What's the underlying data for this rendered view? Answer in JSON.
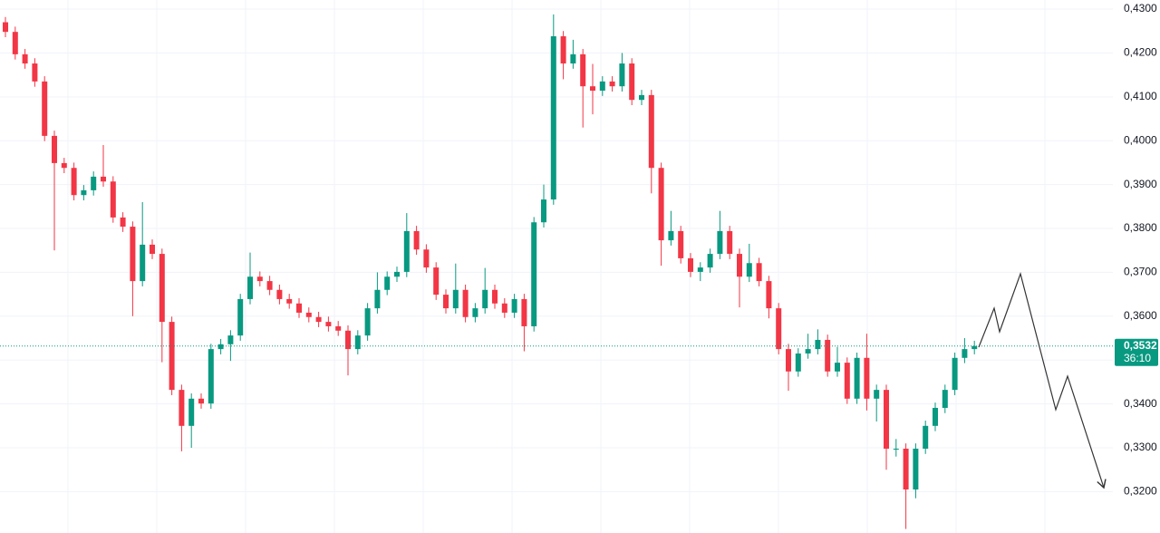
{
  "chart_data": {
    "type": "candlestick",
    "up_color": "#089981",
    "down_color": "#f23645",
    "grid": true,
    "ylim": [
      0.31058,
      0.43207
    ],
    "yticks": [
      {
        "value": 0.43,
        "label": "0,4300"
      },
      {
        "value": 0.42,
        "label": "0,4200"
      },
      {
        "value": 0.41,
        "label": "0,4100"
      },
      {
        "value": 0.4,
        "label": "0,4000"
      },
      {
        "value": 0.39,
        "label": "0,3900"
      },
      {
        "value": 0.38,
        "label": "0,3800"
      },
      {
        "value": 0.37,
        "label": "0,3700"
      },
      {
        "value": 0.36,
        "label": "0,3600"
      },
      {
        "value": 0.35,
        "label": "0,3500"
      },
      {
        "value": 0.34,
        "label": "0,3400"
      },
      {
        "value": 0.33,
        "label": "0,3300"
      },
      {
        "value": 0.32,
        "label": "0,3200"
      }
    ],
    "last_price": {
      "value": 0.3532,
      "label": "0,3532"
    },
    "countdown": "36:10",
    "open": [
      0.427,
      0.4248,
      0.4197,
      0.4176,
      0.4135,
      0.4011,
      0.3949,
      0.3938,
      0.3876,
      0.3887,
      0.3918,
      0.3907,
      0.3825,
      0.3804,
      0.368,
      0.3763,
      0.3742,
      0.3587,
      0.3432,
      0.335,
      0.3412,
      0.3401,
      0.3525,
      0.3536,
      0.3556,
      0.3639,
      0.369,
      0.368,
      0.366,
      0.3639,
      0.3629,
      0.3608,
      0.3598,
      0.3587,
      0.3577,
      0.3567,
      0.3525,
      0.3556,
      0.3618,
      0.366,
      0.369,
      0.3701,
      0.3794,
      0.3752,
      0.3711,
      0.3649,
      0.3618,
      0.366,
      0.3598,
      0.3618,
      0.366,
      0.3629,
      0.3608,
      0.3639,
      0.3577,
      0.3814,
      0.3866,
      0.4238,
      0.4176,
      0.4197,
      0.4124,
      0.4114,
      0.4135,
      0.4124,
      0.4176,
      0.4093,
      0.4104,
      0.3938,
      0.3773,
      0.3794,
      0.3732,
      0.3701,
      0.3711,
      0.3742,
      0.3794,
      0.3742,
      0.369,
      0.3721,
      0.368,
      0.3618,
      0.3525,
      0.3474,
      0.3515,
      0.3525,
      0.3546,
      0.3474,
      0.3494,
      0.3412,
      0.3505,
      0.3412,
      0.3432,
      0.3298,
      0.3298,
      0.3205,
      0.3298,
      0.335,
      0.3391,
      0.3432,
      0.3505,
      0.3525
    ],
    "high": [
      0.4282,
      0.426,
      0.4209,
      0.4188,
      0.4147,
      0.4023,
      0.3961,
      0.395,
      0.3899,
      0.393,
      0.399,
      0.3919,
      0.3837,
      0.3816,
      0.386,
      0.3775,
      0.3754,
      0.3599,
      0.3444,
      0.3424,
      0.3424,
      0.3537,
      0.3548,
      0.3568,
      0.3651,
      0.3745,
      0.3702,
      0.3692,
      0.3672,
      0.3651,
      0.3641,
      0.362,
      0.361,
      0.3599,
      0.3589,
      0.3579,
      0.3568,
      0.363,
      0.37,
      0.3702,
      0.3713,
      0.3835,
      0.3806,
      0.3764,
      0.3723,
      0.3661,
      0.372,
      0.3672,
      0.363,
      0.371,
      0.3672,
      0.3641,
      0.3651,
      0.3651,
      0.3826,
      0.39,
      0.4288,
      0.425,
      0.423,
      0.4209,
      0.4175,
      0.4147,
      0.4147,
      0.42,
      0.4188,
      0.4116,
      0.4116,
      0.395,
      0.384,
      0.3806,
      0.3744,
      0.3723,
      0.3754,
      0.384,
      0.3806,
      0.3754,
      0.3765,
      0.3733,
      0.3692,
      0.363,
      0.3537,
      0.3527,
      0.356,
      0.357,
      0.3558,
      0.353,
      0.3506,
      0.3517,
      0.356,
      0.3444,
      0.3444,
      0.332,
      0.331,
      0.331,
      0.3362,
      0.3403,
      0.3444,
      0.3517,
      0.355,
      0.3544
    ],
    "low": [
      0.4236,
      0.4185,
      0.4164,
      0.4123,
      0.3999,
      0.375,
      0.3926,
      0.3864,
      0.3864,
      0.3875,
      0.3895,
      0.3813,
      0.3792,
      0.36,
      0.3668,
      0.373,
      0.3495,
      0.342,
      0.3292,
      0.33,
      0.3389,
      0.3389,
      0.3513,
      0.3498,
      0.3544,
      0.3627,
      0.3668,
      0.3648,
      0.3627,
      0.3617,
      0.3596,
      0.3586,
      0.3575,
      0.3565,
      0.3555,
      0.3465,
      0.3513,
      0.3544,
      0.3606,
      0.3648,
      0.3678,
      0.3689,
      0.374,
      0.3699,
      0.3637,
      0.3606,
      0.3606,
      0.3586,
      0.3586,
      0.3606,
      0.3617,
      0.3596,
      0.3596,
      0.352,
      0.3565,
      0.3802,
      0.3854,
      0.414,
      0.4164,
      0.403,
      0.406,
      0.4102,
      0.4112,
      0.4112,
      0.4081,
      0.4081,
      0.388,
      0.3715,
      0.3761,
      0.372,
      0.3689,
      0.368,
      0.3699,
      0.373,
      0.373,
      0.362,
      0.3678,
      0.3668,
      0.3595,
      0.3513,
      0.343,
      0.3462,
      0.3503,
      0.3513,
      0.3462,
      0.3462,
      0.34,
      0.34,
      0.3385,
      0.336,
      0.325,
      0.328,
      0.3115,
      0.3185,
      0.3286,
      0.3338,
      0.3379,
      0.342,
      0.3493,
      0.3513
    ],
    "close": [
      0.4248,
      0.4197,
      0.4176,
      0.4135,
      0.4011,
      0.3949,
      0.3938,
      0.3876,
      0.3887,
      0.3918,
      0.3907,
      0.3825,
      0.3804,
      0.368,
      0.3763,
      0.3742,
      0.3587,
      0.3432,
      0.335,
      0.3412,
      0.3401,
      0.3525,
      0.3536,
      0.3556,
      0.3639,
      0.369,
      0.368,
      0.366,
      0.3639,
      0.3629,
      0.3608,
      0.3598,
      0.3587,
      0.3577,
      0.3567,
      0.3525,
      0.3556,
      0.3618,
      0.366,
      0.369,
      0.3701,
      0.3794,
      0.3752,
      0.3711,
      0.3649,
      0.3618,
      0.366,
      0.3598,
      0.3618,
      0.366,
      0.3629,
      0.3608,
      0.3639,
      0.3577,
      0.3814,
      0.3866,
      0.4238,
      0.4176,
      0.4197,
      0.4124,
      0.4114,
      0.4135,
      0.4124,
      0.4176,
      0.4093,
      0.4104,
      0.3938,
      0.3773,
      0.3794,
      0.3732,
      0.3701,
      0.3711,
      0.3742,
      0.3794,
      0.3742,
      0.369,
      0.3721,
      0.368,
      0.3618,
      0.3525,
      0.3474,
      0.3515,
      0.3525,
      0.3546,
      0.3474,
      0.3494,
      0.3412,
      0.3505,
      0.3412,
      0.3432,
      0.3298,
      0.3298,
      0.3205,
      0.3298,
      0.335,
      0.3391,
      0.3432,
      0.3505,
      0.3525,
      0.3532
    ]
  }
}
